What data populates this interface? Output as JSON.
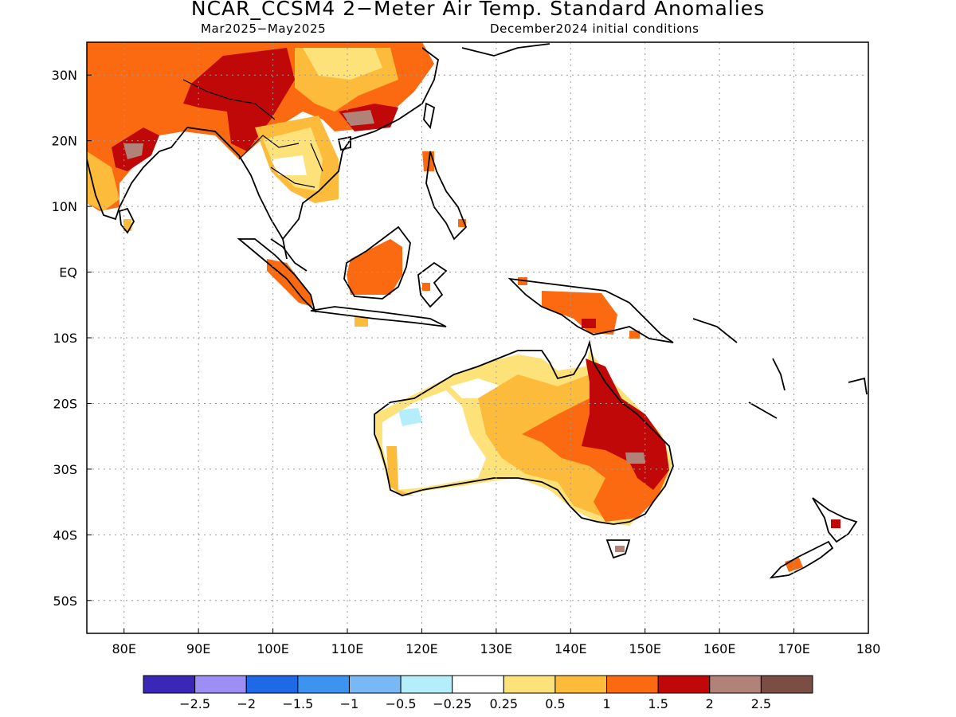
{
  "title": "NCAR_CCSM4 2−Meter Air Temp. Standard Anomalies",
  "subtitle_left": "Mar2025−May2025",
  "subtitle_right": "December2024 initial conditions",
  "map": {
    "lon_range": [
      75,
      180
    ],
    "lat_range": [
      -55,
      35
    ],
    "gridlines": "dotted",
    "x_ticks": [
      {
        "value": 80,
        "label": "80E"
      },
      {
        "value": 90,
        "label": "90E"
      },
      {
        "value": 100,
        "label": "100E"
      },
      {
        "value": 110,
        "label": "110E"
      },
      {
        "value": 120,
        "label": "120E"
      },
      {
        "value": 130,
        "label": "130E"
      },
      {
        "value": 140,
        "label": "140E"
      },
      {
        "value": 150,
        "label": "150E"
      },
      {
        "value": 160,
        "label": "160E"
      },
      {
        "value": 170,
        "label": "170E"
      },
      {
        "value": 180,
        "label": "180"
      }
    ],
    "y_ticks": [
      {
        "value": 30,
        "label": "30N"
      },
      {
        "value": 20,
        "label": "20N"
      },
      {
        "value": 10,
        "label": "10N"
      },
      {
        "value": 0,
        "label": "EQ"
      },
      {
        "value": -10,
        "label": "10S"
      },
      {
        "value": -20,
        "label": "20S"
      },
      {
        "value": -30,
        "label": "30S"
      },
      {
        "value": -40,
        "label": "40S"
      },
      {
        "value": -50,
        "label": "50S"
      }
    ]
  },
  "colorbar": {
    "colors": [
      "#3a27b7",
      "#9d8ef5",
      "#1e69e6",
      "#3d93f0",
      "#78b8f5",
      "#b3eefa",
      "#ffffff",
      "#fde27a",
      "#fdbb3c",
      "#fb6a10",
      "#c10808",
      "#b08278",
      "#7a4e44"
    ],
    "labels": [
      "−2.5",
      "−2",
      "−1.5",
      "−1",
      "−0.5",
      "−0.25",
      "0.25",
      "0.5",
      "1",
      "1.5",
      "2",
      "2.5"
    ]
  },
  "colors": {
    "very_hot": "#c10808",
    "hot": "#fb6a10",
    "warm": "#fdbb3c",
    "mild": "#fde27a",
    "extreme": "#b08278",
    "cool": "#b3eefa"
  }
}
